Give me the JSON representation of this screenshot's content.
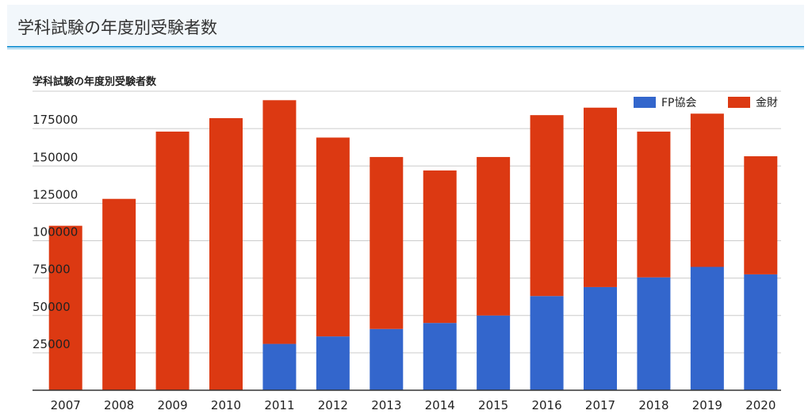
{
  "header": {
    "title": "学科試験の年度別受験者数"
  },
  "colors": {
    "fp": "#3366cc",
    "kinzai": "#dc3912",
    "grid": "#cccccc",
    "axis": "#333333"
  },
  "chart_data": {
    "type": "bar",
    "stacked": true,
    "title": "学科試験の年度別受験者数",
    "categories": [
      "2007",
      "2008",
      "2009",
      "2010",
      "2011",
      "2012",
      "2013",
      "2014",
      "2015",
      "2016",
      "2017",
      "2018",
      "2019",
      "2020"
    ],
    "series": [
      {
        "name": "FP協会",
        "values": [
          0,
          0,
          0,
          0,
          31000,
          36000,
          41000,
          45000,
          50000,
          63000,
          69000,
          75500,
          82500,
          77500
        ]
      },
      {
        "name": "金財",
        "values": [
          110000,
          128000,
          173000,
          182000,
          163000,
          133000,
          115000,
          102000,
          106000,
          121000,
          120000,
          97500,
          102500,
          79000
        ]
      }
    ],
    "y_ticks": [
      25000,
      50000,
      75000,
      100000,
      125000,
      150000,
      175000
    ],
    "ylim": [
      0,
      200000
    ],
    "xlabel": "",
    "ylabel": "",
    "grid": true,
    "legend": "top-right"
  }
}
